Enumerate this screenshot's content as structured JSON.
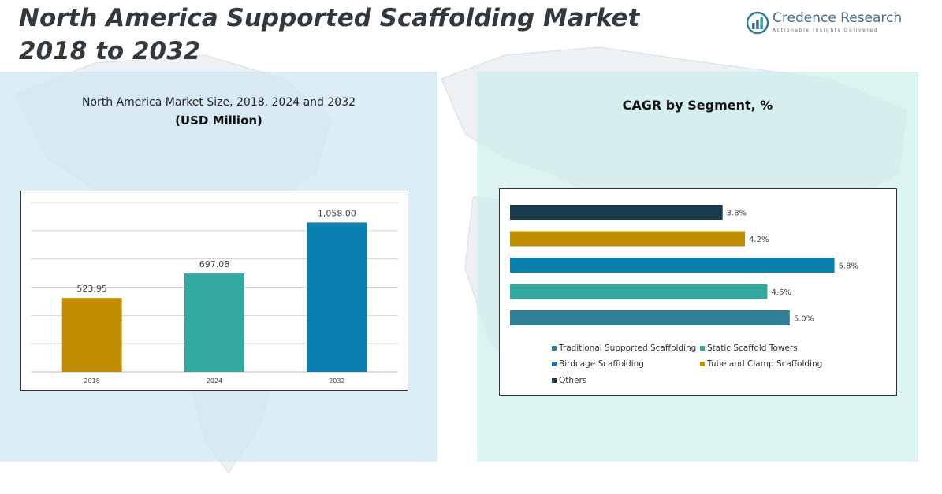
{
  "header": {
    "title_line1": "North America Supported Scaffolding Market",
    "title_line2": "2018 to 2032"
  },
  "logo": {
    "name": "Credence Research",
    "tagline": "Actionable Insights Delivered",
    "icon": "bar-chart-circle-icon"
  },
  "left_panel": {
    "title": "North America Market Size, 2018, 2024 and 2032",
    "subtitle": "(USD Million)"
  },
  "right_panel": {
    "title": "CAGR by Segment, %"
  },
  "colors": {
    "gold": "#c08e00",
    "teal": "#33a89e",
    "blue": "#0a7fb0",
    "steel": "#2f7f99",
    "navy": "#1c3a4a"
  },
  "chart_data": [
    {
      "type": "bar",
      "categories": [
        "2018",
        "2024",
        "2032"
      ],
      "values": [
        523.95,
        697.08,
        1058.0
      ],
      "value_labels": [
        "523.95",
        "697.08",
        "1,058.00"
      ],
      "bar_colors": [
        "#c08e00",
        "#33a89e",
        "#0a7fb0"
      ],
      "ylim": [
        0,
        1200
      ],
      "grid": true,
      "xlabel": "",
      "ylabel": ""
    },
    {
      "type": "bar",
      "orientation": "horizontal",
      "categories": [
        "Others",
        "Tube and Clamp Scaffolding",
        "Birdcage Scaffolding",
        "Static Scaffold Towers",
        "Traditional Supported Scaffolding"
      ],
      "values": [
        3.8,
        4.2,
        5.8,
        4.6,
        5.0
      ],
      "value_labels": [
        "3.8%",
        "4.2%",
        "5.8%",
        "4.6%",
        "5.0%"
      ],
      "bar_colors": [
        "#1c3a4a",
        "#c08e00",
        "#0a7fb0",
        "#33a89e",
        "#2f7f99"
      ],
      "xlim": [
        0,
        6.2
      ],
      "grid": false,
      "legend": {
        "placement": "bottom",
        "items": [
          {
            "label": "Traditional Supported Scaffolding",
            "color": "#2f7f99"
          },
          {
            "label": "Static Scaffold Towers",
            "color": "#33a89e"
          },
          {
            "label": "Birdcage Scaffolding",
            "color": "#0a7fb0"
          },
          {
            "label": "Tube and Clamp Scaffolding",
            "color": "#c08e00"
          },
          {
            "label": "Others",
            "color": "#1c3a4a"
          }
        ]
      }
    }
  ]
}
